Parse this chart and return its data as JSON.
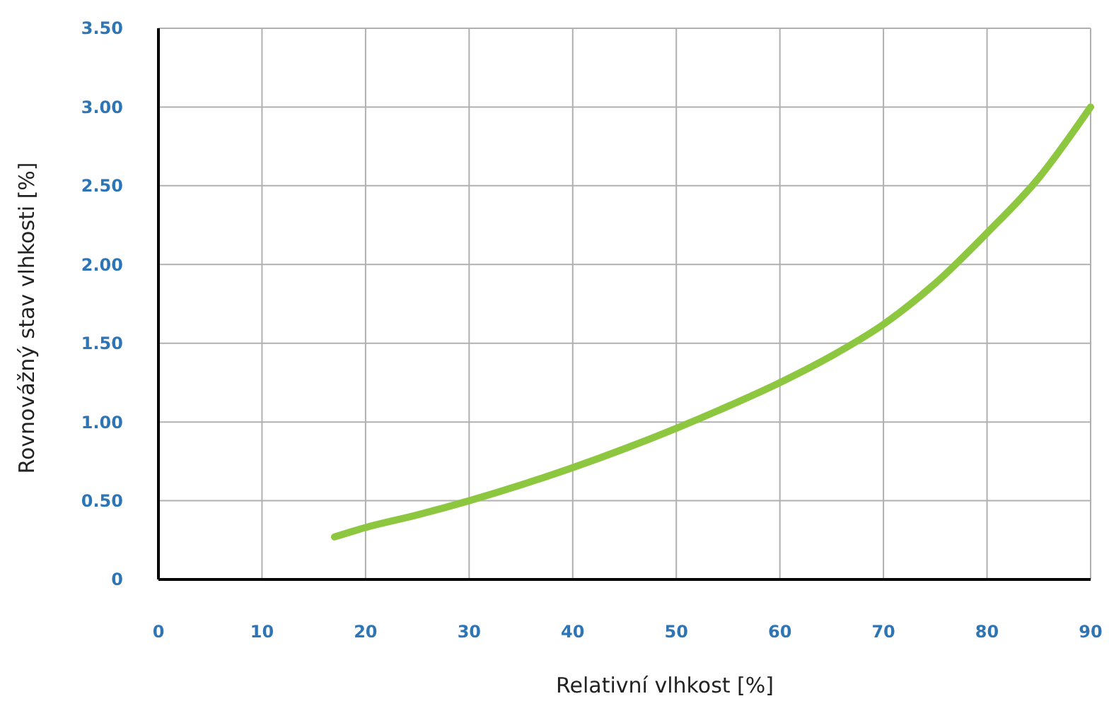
{
  "chart_data": {
    "type": "line",
    "xlabel": "Relativní vlhkost [%]",
    "ylabel": "Rovnovážný stav vlhkosti [%]",
    "x": [
      17,
      20,
      25,
      30,
      35,
      40,
      45,
      50,
      55,
      60,
      65,
      70,
      75,
      80,
      85,
      90
    ],
    "series": [
      {
        "color": "#8dc63f",
        "values": [
          0.27,
          0.33,
          0.41,
          0.5,
          0.6,
          0.71,
          0.83,
          0.96,
          1.1,
          1.25,
          1.42,
          1.62,
          1.88,
          2.2,
          2.55,
          3.0
        ]
      }
    ],
    "xlim": [
      0,
      90
    ],
    "xticks": [
      0,
      10,
      20,
      30,
      40,
      50,
      60,
      70,
      80,
      90
    ],
    "ylim": [
      0,
      3.5
    ],
    "yticks": [
      0,
      {
        "value": 0.5,
        "label": "0.50"
      },
      {
        "value": 1,
        "label": "1.00"
      },
      {
        "value": 1.5,
        "label": "1.50"
      },
      {
        "value": 2,
        "label": "2.00"
      },
      {
        "value": 2.5,
        "label": "2.50"
      },
      {
        "value": 3,
        "label": "3.00"
      },
      {
        "value": 3.5,
        "label": "3.50"
      }
    ],
    "grid": true,
    "marker": "none",
    "line_style": "solid"
  }
}
